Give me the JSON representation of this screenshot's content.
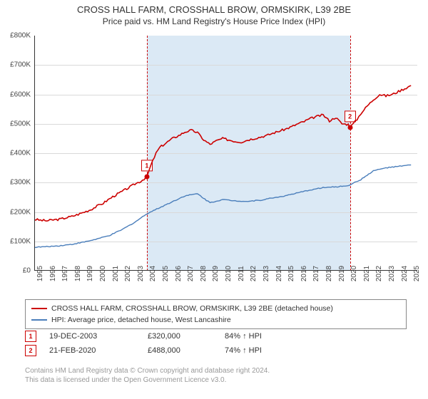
{
  "title_line1": "CROSS HALL FARM, CROSSHALL BROW, ORMSKIRK, L39 2BE",
  "title_line2": "Price paid vs. HM Land Registry's House Price Index (HPI)",
  "chart": {
    "type": "line",
    "background_color": "#ffffff",
    "grid_color": "#d9d9d9",
    "shaded_region_color": "#dbe9f5",
    "shaded_edge_color": "#cc0000",
    "x_min": 1995,
    "x_max": 2025.5,
    "y_min": 0,
    "y_max": 800000,
    "y_tick_step": 100000,
    "y_tick_prefix": "£",
    "y_tick_suffix": "K",
    "x_ticks": [
      1995,
      1996,
      1997,
      1998,
      1999,
      2000,
      2001,
      2002,
      2003,
      2004,
      2005,
      2006,
      2007,
      2008,
      2009,
      2010,
      2011,
      2012,
      2013,
      2014,
      2015,
      2016,
      2017,
      2018,
      2019,
      2020,
      2021,
      2022,
      2023,
      2024,
      2025
    ],
    "shaded_x_from": 2003.97,
    "shaded_x_to": 2020.14,
    "series": [
      {
        "name": "property",
        "label": "CROSS HALL FARM, CROSSHALL BROW, ORMSKIRK, L39 2BE (detached house)",
        "color": "#cc0000",
        "line_width": 1.6,
        "data": [
          [
            1995,
            175000
          ],
          [
            1995.5,
            172000
          ],
          [
            1996,
            170000
          ],
          [
            1996.5,
            173000
          ],
          [
            1997,
            175000
          ],
          [
            1997.5,
            180000
          ],
          [
            1998,
            185000
          ],
          [
            1998.5,
            192000
          ],
          [
            1999,
            200000
          ],
          [
            1999.5,
            208000
          ],
          [
            2000,
            220000
          ],
          [
            2000.5,
            230000
          ],
          [
            2001,
            245000
          ],
          [
            2001.5,
            258000
          ],
          [
            2002,
            270000
          ],
          [
            2002.5,
            282000
          ],
          [
            2003,
            295000
          ],
          [
            2003.5,
            305000
          ],
          [
            2003.97,
            320000
          ],
          [
            2004.3,
            360000
          ],
          [
            2004.7,
            400000
          ],
          [
            2005,
            420000
          ],
          [
            2005.5,
            435000
          ],
          [
            2006,
            450000
          ],
          [
            2006.5,
            460000
          ],
          [
            2007,
            472000
          ],
          [
            2007.5,
            478000
          ],
          [
            2008,
            470000
          ],
          [
            2008.5,
            445000
          ],
          [
            2009,
            430000
          ],
          [
            2009.5,
            442000
          ],
          [
            2010,
            450000
          ],
          [
            2010.5,
            445000
          ],
          [
            2011,
            440000
          ],
          [
            2011.5,
            438000
          ],
          [
            2012,
            445000
          ],
          [
            2012.5,
            450000
          ],
          [
            2013,
            455000
          ],
          [
            2013.5,
            460000
          ],
          [
            2014,
            468000
          ],
          [
            2014.5,
            475000
          ],
          [
            2015,
            482000
          ],
          [
            2015.5,
            490000
          ],
          [
            2016,
            500000
          ],
          [
            2016.5,
            508000
          ],
          [
            2017,
            518000
          ],
          [
            2017.5,
            525000
          ],
          [
            2018,
            530000
          ],
          [
            2018.5,
            510000
          ],
          [
            2019,
            522000
          ],
          [
            2019.5,
            500000
          ],
          [
            2020,
            498000
          ],
          [
            2020.14,
            488000
          ],
          [
            2020.7,
            515000
          ],
          [
            2021,
            535000
          ],
          [
            2021.5,
            560000
          ],
          [
            2022,
            582000
          ],
          [
            2022.5,
            600000
          ],
          [
            2023,
            595000
          ],
          [
            2023.5,
            600000
          ],
          [
            2024,
            610000
          ],
          [
            2024.5,
            620000
          ],
          [
            2025,
            630000
          ]
        ]
      },
      {
        "name": "hpi",
        "label": "HPI: Average price, detached house, West Lancashire",
        "color": "#4a7ebb",
        "line_width": 1.4,
        "data": [
          [
            1995,
            80000
          ],
          [
            1996,
            82000
          ],
          [
            1997,
            85000
          ],
          [
            1998,
            90000
          ],
          [
            1999,
            98000
          ],
          [
            2000,
            108000
          ],
          [
            2001,
            120000
          ],
          [
            2002,
            140000
          ],
          [
            2003,
            165000
          ],
          [
            2004,
            195000
          ],
          [
            2005,
            215000
          ],
          [
            2006,
            235000
          ],
          [
            2007,
            255000
          ],
          [
            2008,
            262000
          ],
          [
            2008.7,
            240000
          ],
          [
            2009,
            232000
          ],
          [
            2010,
            242000
          ],
          [
            2011,
            238000
          ],
          [
            2012,
            236000
          ],
          [
            2013,
            240000
          ],
          [
            2014,
            248000
          ],
          [
            2015,
            255000
          ],
          [
            2016,
            265000
          ],
          [
            2017,
            275000
          ],
          [
            2018,
            283000
          ],
          [
            2019,
            285000
          ],
          [
            2020,
            290000
          ],
          [
            2021,
            310000
          ],
          [
            2022,
            340000
          ],
          [
            2023,
            350000
          ],
          [
            2024,
            355000
          ],
          [
            2025,
            360000
          ]
        ]
      }
    ],
    "markers": [
      {
        "n": "1",
        "x": 2003.97,
        "y": 320000
      },
      {
        "n": "2",
        "x": 2020.14,
        "y": 488000
      }
    ]
  },
  "legend": {
    "series1_label": "CROSS HALL FARM, CROSSHALL BROW, ORMSKIRK, L39 2BE (detached house)",
    "series2_label": "HPI: Average price, detached house, West Lancashire"
  },
  "events": [
    {
      "n": "1",
      "date": "19-DEC-2003",
      "price": "£320,000",
      "delta": "84% ↑ HPI"
    },
    {
      "n": "2",
      "date": "21-FEB-2020",
      "price": "£488,000",
      "delta": "74% ↑ HPI"
    }
  ],
  "footer_line1": "Contains HM Land Registry data © Crown copyright and database right 2024.",
  "footer_line2": "This data is licensed under the Open Government Licence v3.0."
}
